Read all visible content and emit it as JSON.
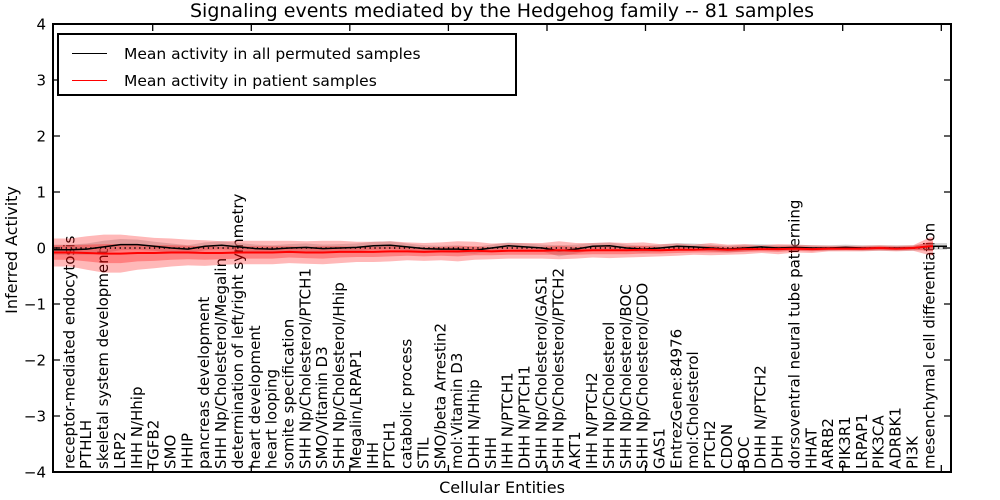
{
  "title": "Signaling events mediated by the Hedgehog family -- 81 samples",
  "legend": {
    "entries": [
      {
        "label": "Mean activity in all permuted samples",
        "color": "#000000"
      },
      {
        "label": "Mean activity in patient samples",
        "color": "#ff0000"
      }
    ]
  },
  "axes": {
    "xlabel": "Cellular Entities",
    "ylabel": "Inferred Activity",
    "y_ticks": [
      "4",
      "3",
      "2",
      "1",
      "0",
      "−1",
      "−2",
      "−3",
      "−4"
    ],
    "ylim": [
      -4,
      4
    ]
  },
  "chart_data": {
    "type": "line",
    "title": "Signaling events mediated by the Hedgehog family -- 81 samples",
    "xlabel": "Cellular Entities",
    "ylabel": "Inferred Activity",
    "ylim": [
      -4,
      4
    ],
    "grid": false,
    "legend_position": "upper left",
    "categories": [
      "receptor-mediated endocytosis",
      "PTHLH",
      "skeletal system development",
      "LRP2",
      "IHH N/Hhip",
      "TGFB2",
      "SMO",
      "HHIP",
      "pancreas development",
      "SHH Np/Cholesterol/Megalin",
      "determination of left/right symmetry",
      "heart development",
      "heart looping",
      "somite specification",
      "SHH Np/Cholesterol/PTCH1",
      "SMO/Vitamin D3",
      "SHH Np/Cholesterol/Hhip",
      "Megalin/LRPAP1",
      "IHH",
      "PTCH1",
      "catabolic process",
      "STIL",
      "SMO/beta Arrestin2",
      "mol:Vitamin D3",
      "DHH N/Hhip",
      "SHH",
      "IHH N/PTCH1",
      "DHH N/PTCH1",
      "SHH Np/Cholesterol/GAS1",
      "SHH Np/Cholesterol/PTCH2",
      "AKT1",
      "IHH N/PTCH2",
      "SHH Np/Cholesterol",
      "SHH Np/Cholesterol/BOC",
      "SHH Np/Cholesterol/CDO",
      "GAS1",
      "EntrezGene:84976",
      "mol:Cholesterol",
      "PTCH2",
      "CDON",
      "BOC",
      "DHH N/PTCH2",
      "DHH",
      "dorsoventral neural tube patterning",
      "HHAT",
      "ARRB2",
      "PIK3R1",
      "LRPAP1",
      "PIK3CA",
      "ADRBK1",
      "PI3K",
      "mesenchymal cell differentiation"
    ],
    "series": [
      {
        "name": "Mean activity in all permuted samples",
        "color": "#000000",
        "style": "solid",
        "width": 1.5,
        "values": [
          -0.03,
          -0.02,
          0.02,
          0.06,
          0.06,
          0.03,
          0.0,
          -0.02,
          0.03,
          0.05,
          0.02,
          -0.01,
          -0.02,
          0.0,
          0.01,
          -0.01,
          0.0,
          0.01,
          0.04,
          0.05,
          0.02,
          -0.01,
          -0.02,
          -0.02,
          -0.04,
          0.0,
          0.04,
          0.02,
          0.0,
          -0.05,
          -0.02,
          0.03,
          0.04,
          0.0,
          -0.02,
          0.0,
          0.03,
          0.02,
          0.0,
          -0.02,
          0.0,
          0.02,
          0.0,
          0.01,
          0.0,
          0.0,
          0.01,
          0.0,
          0.0,
          0.0,
          0.0,
          0.03
        ]
      },
      {
        "name": "Mean activity in patient samples",
        "color": "#ff0000",
        "style": "solid",
        "width": 2,
        "values": [
          -0.08,
          -0.09,
          -0.1,
          -0.1,
          -0.09,
          -0.09,
          -0.08,
          -0.08,
          -0.09,
          -0.09,
          -0.08,
          -0.08,
          -0.08,
          -0.07,
          -0.08,
          -0.08,
          -0.07,
          -0.07,
          -0.07,
          -0.06,
          -0.06,
          -0.07,
          -0.06,
          -0.06,
          -0.05,
          -0.06,
          -0.05,
          -0.05,
          -0.05,
          -0.04,
          -0.05,
          -0.04,
          -0.04,
          -0.04,
          -0.03,
          -0.04,
          -0.03,
          -0.03,
          -0.02,
          -0.03,
          -0.02,
          -0.02,
          -0.02,
          -0.01,
          -0.02,
          -0.01,
          -0.01,
          -0.01,
          0.0,
          -0.01,
          0.0,
          0.03
        ]
      }
    ],
    "zero_reference_line": {
      "value": 0,
      "color": "#000000",
      "style": "dotted"
    },
    "bands": [
      {
        "name": "permuted mean ± std",
        "center": "permuted",
        "color": "#a8a8a8",
        "opacity": 0.45,
        "halfwidths": [
          0.09,
          0.1,
          0.11,
          0.1,
          0.09,
          0.08,
          0.08,
          0.07,
          0.07,
          0.07,
          0.07,
          0.07,
          0.07,
          0.07,
          0.07,
          0.07,
          0.07,
          0.07,
          0.07,
          0.07,
          0.06,
          0.06,
          0.06,
          0.07,
          0.06,
          0.06,
          0.06,
          0.06,
          0.06,
          0.1,
          0.08,
          0.06,
          0.06,
          0.06,
          0.06,
          0.06,
          0.06,
          0.06,
          0.06,
          0.06,
          0.06,
          0.05,
          0.05,
          0.05,
          0.05,
          0.05,
          0.05,
          0.05,
          0.05,
          0.05,
          0.05,
          0.06
        ]
      },
      {
        "name": "patient mean ± 2·std",
        "center": "patient",
        "color": "#ff0000",
        "opacity": 0.28,
        "halfwidths": [
          0.25,
          0.3,
          0.34,
          0.34,
          0.3,
          0.27,
          0.25,
          0.23,
          0.23,
          0.21,
          0.21,
          0.21,
          0.21,
          0.2,
          0.2,
          0.21,
          0.2,
          0.18,
          0.18,
          0.18,
          0.16,
          0.16,
          0.16,
          0.18,
          0.16,
          0.14,
          0.14,
          0.14,
          0.14,
          0.16,
          0.14,
          0.13,
          0.14,
          0.13,
          0.13,
          0.11,
          0.11,
          0.09,
          0.11,
          0.09,
          0.09,
          0.07,
          0.09,
          0.07,
          0.07,
          0.05,
          0.05,
          0.05,
          0.05,
          0.05,
          0.05,
          0.16
        ]
      },
      {
        "name": "patient mean ± std",
        "center": "patient",
        "color": "#ff0000",
        "opacity": 0.3,
        "halfwidths": [
          0.13,
          0.15,
          0.17,
          0.17,
          0.15,
          0.14,
          0.13,
          0.12,
          0.12,
          0.11,
          0.11,
          0.11,
          0.11,
          0.1,
          0.1,
          0.11,
          0.1,
          0.09,
          0.09,
          0.09,
          0.08,
          0.08,
          0.08,
          0.09,
          0.08,
          0.07,
          0.07,
          0.07,
          0.07,
          0.08,
          0.07,
          0.07,
          0.07,
          0.07,
          0.07,
          0.06,
          0.06,
          0.05,
          0.06,
          0.05,
          0.05,
          0.04,
          0.05,
          0.04,
          0.04,
          0.03,
          0.03,
          0.03,
          0.03,
          0.03,
          0.03,
          0.08
        ]
      }
    ]
  }
}
